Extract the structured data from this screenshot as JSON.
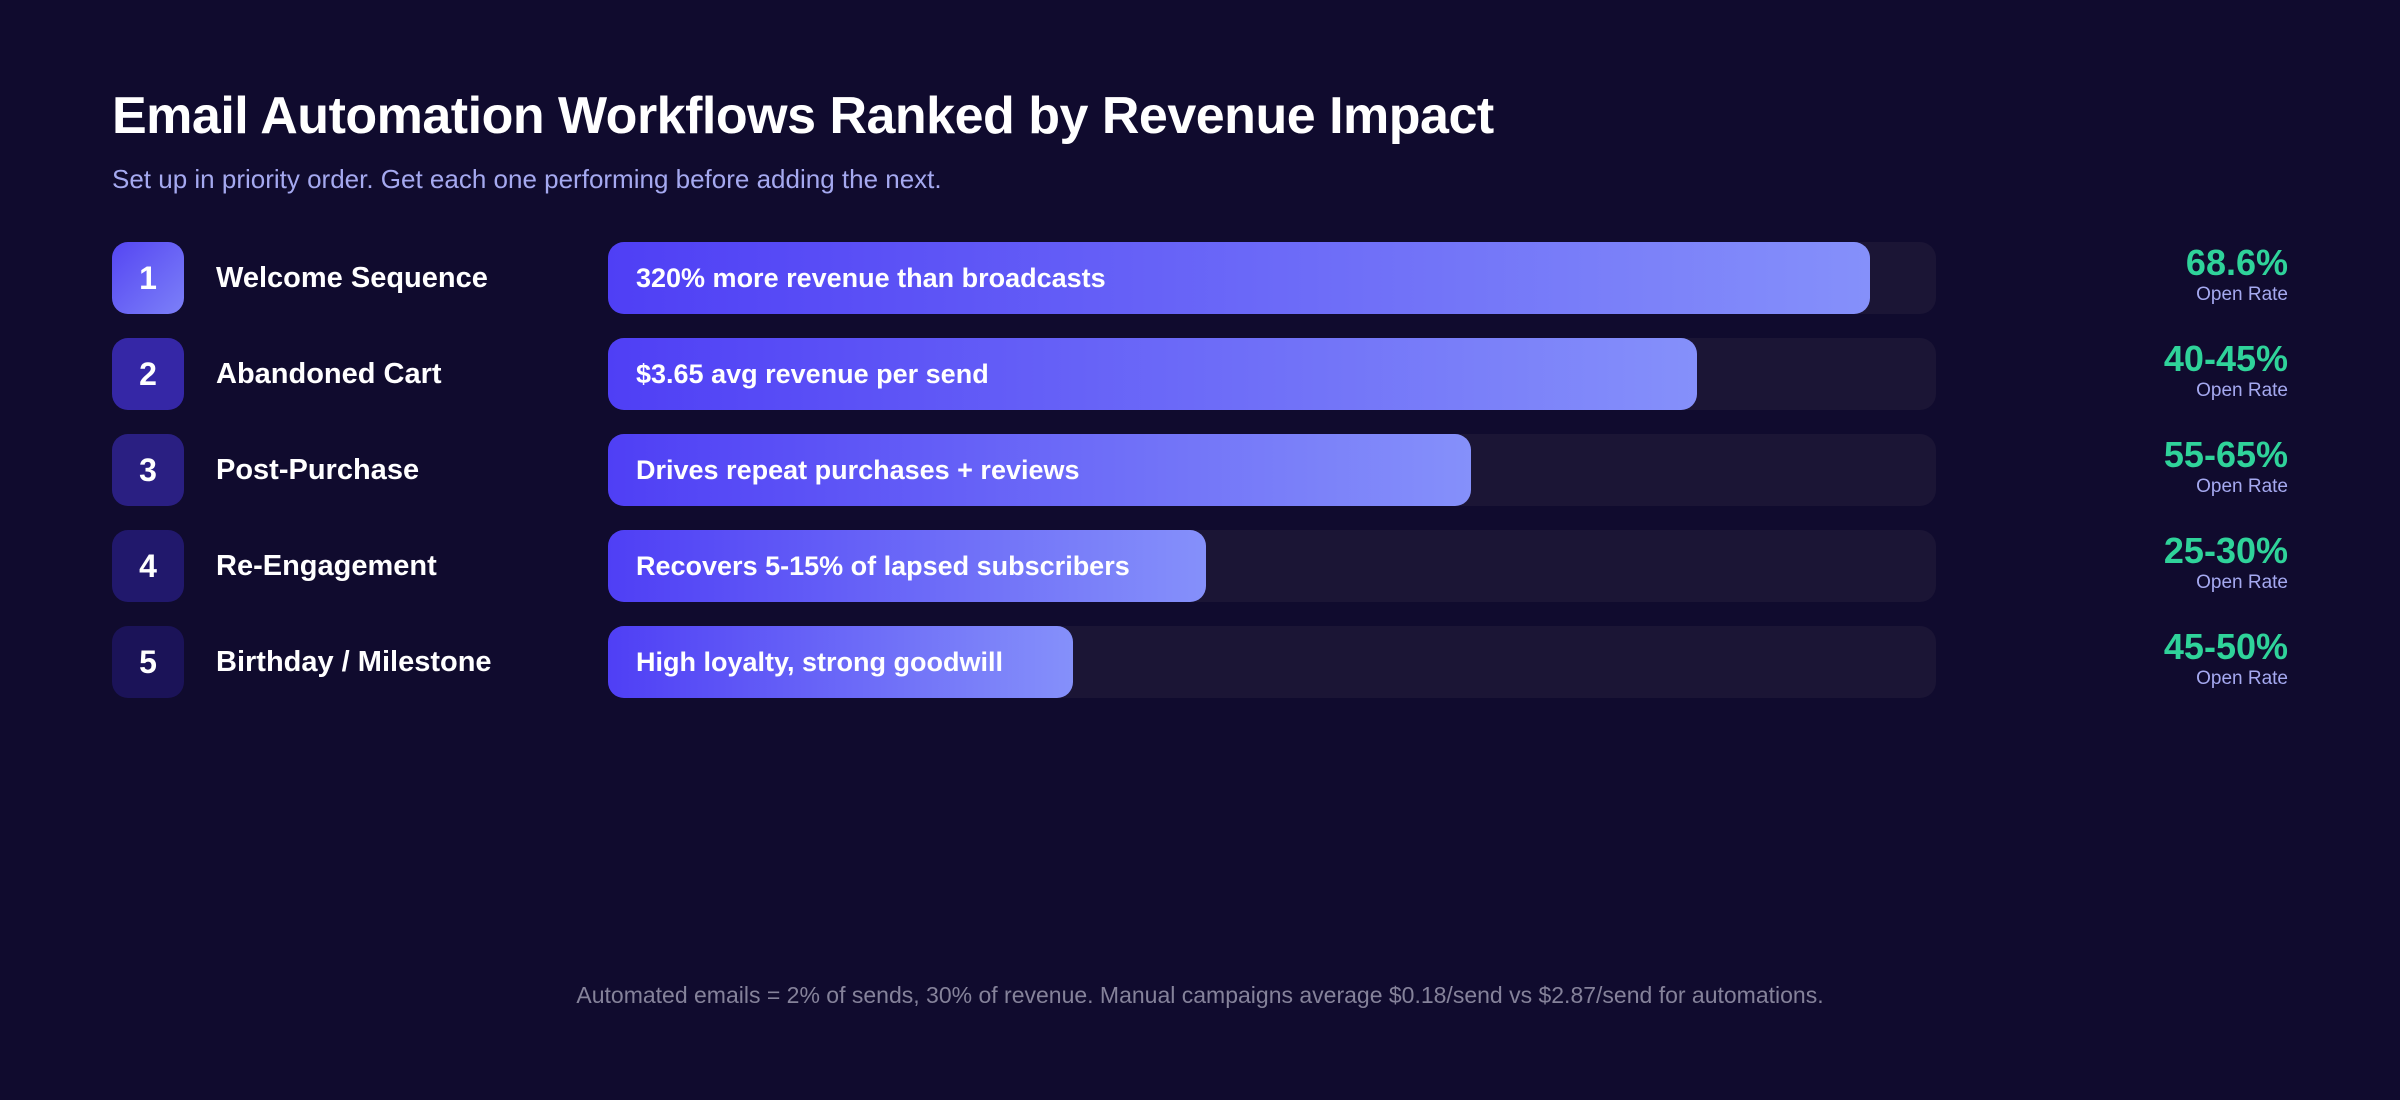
{
  "title": "Email Automation Workflows Ranked by Revenue Impact",
  "subtitle": "Set up in priority order. Get each one performing before adding the next.",
  "footer": "Automated emails = 2% of sends, 30% of revenue. Manual campaigns average $0.18/send vs $2.87/send for automations.",
  "colors": {
    "background": "#100b2e",
    "track": "#1b1535",
    "bar_start": "#4f3ff5",
    "bar_end": "#8590fa",
    "metric": "#2fd39a",
    "metric_label": "#a5a9f0"
  },
  "chart_data": {
    "type": "bar",
    "orientation": "horizontal",
    "title": "Email Automation Workflows Ranked by Revenue Impact",
    "categories": [
      "Welcome Sequence",
      "Abandoned Cart",
      "Post-Purchase",
      "Re-Engagement",
      "Birthday / Milestone"
    ],
    "values_fraction": [
      0.95,
      0.82,
      0.65,
      0.45,
      0.35
    ],
    "rows": [
      {
        "rank": "1",
        "name": "Welcome Sequence",
        "bar_label": "320% more revenue than broadcasts",
        "fill": 0.95,
        "metric": "68.6%",
        "metric_label": "Open Rate",
        "badge_color": "linear-gradient(135deg,#5546f2,#7c80f8)"
      },
      {
        "rank": "2",
        "name": "Abandoned Cart",
        "bar_label": "$3.65 avg revenue per send",
        "fill": 0.82,
        "metric": "40-45%",
        "metric_label": "Open Rate",
        "badge_color": "#3527a6"
      },
      {
        "rank": "3",
        "name": "Post-Purchase",
        "bar_label": "Drives repeat purchases + reviews",
        "fill": 0.65,
        "metric": "55-65%",
        "metric_label": "Open Rate",
        "badge_color": "#2a1f82"
      },
      {
        "rank": "4",
        "name": "Re-Engagement",
        "bar_label": "Recovers 5-15% of lapsed subscribers",
        "fill": 0.45,
        "metric": "25-30%",
        "metric_label": "Open Rate",
        "badge_color": "#21186c"
      },
      {
        "rank": "5",
        "name": "Birthday / Milestone",
        "bar_label": "High loyalty, strong goodwill",
        "fill": 0.35,
        "metric": "45-50%",
        "metric_label": "Open Rate",
        "badge_color": "#1b1358"
      }
    ]
  }
}
